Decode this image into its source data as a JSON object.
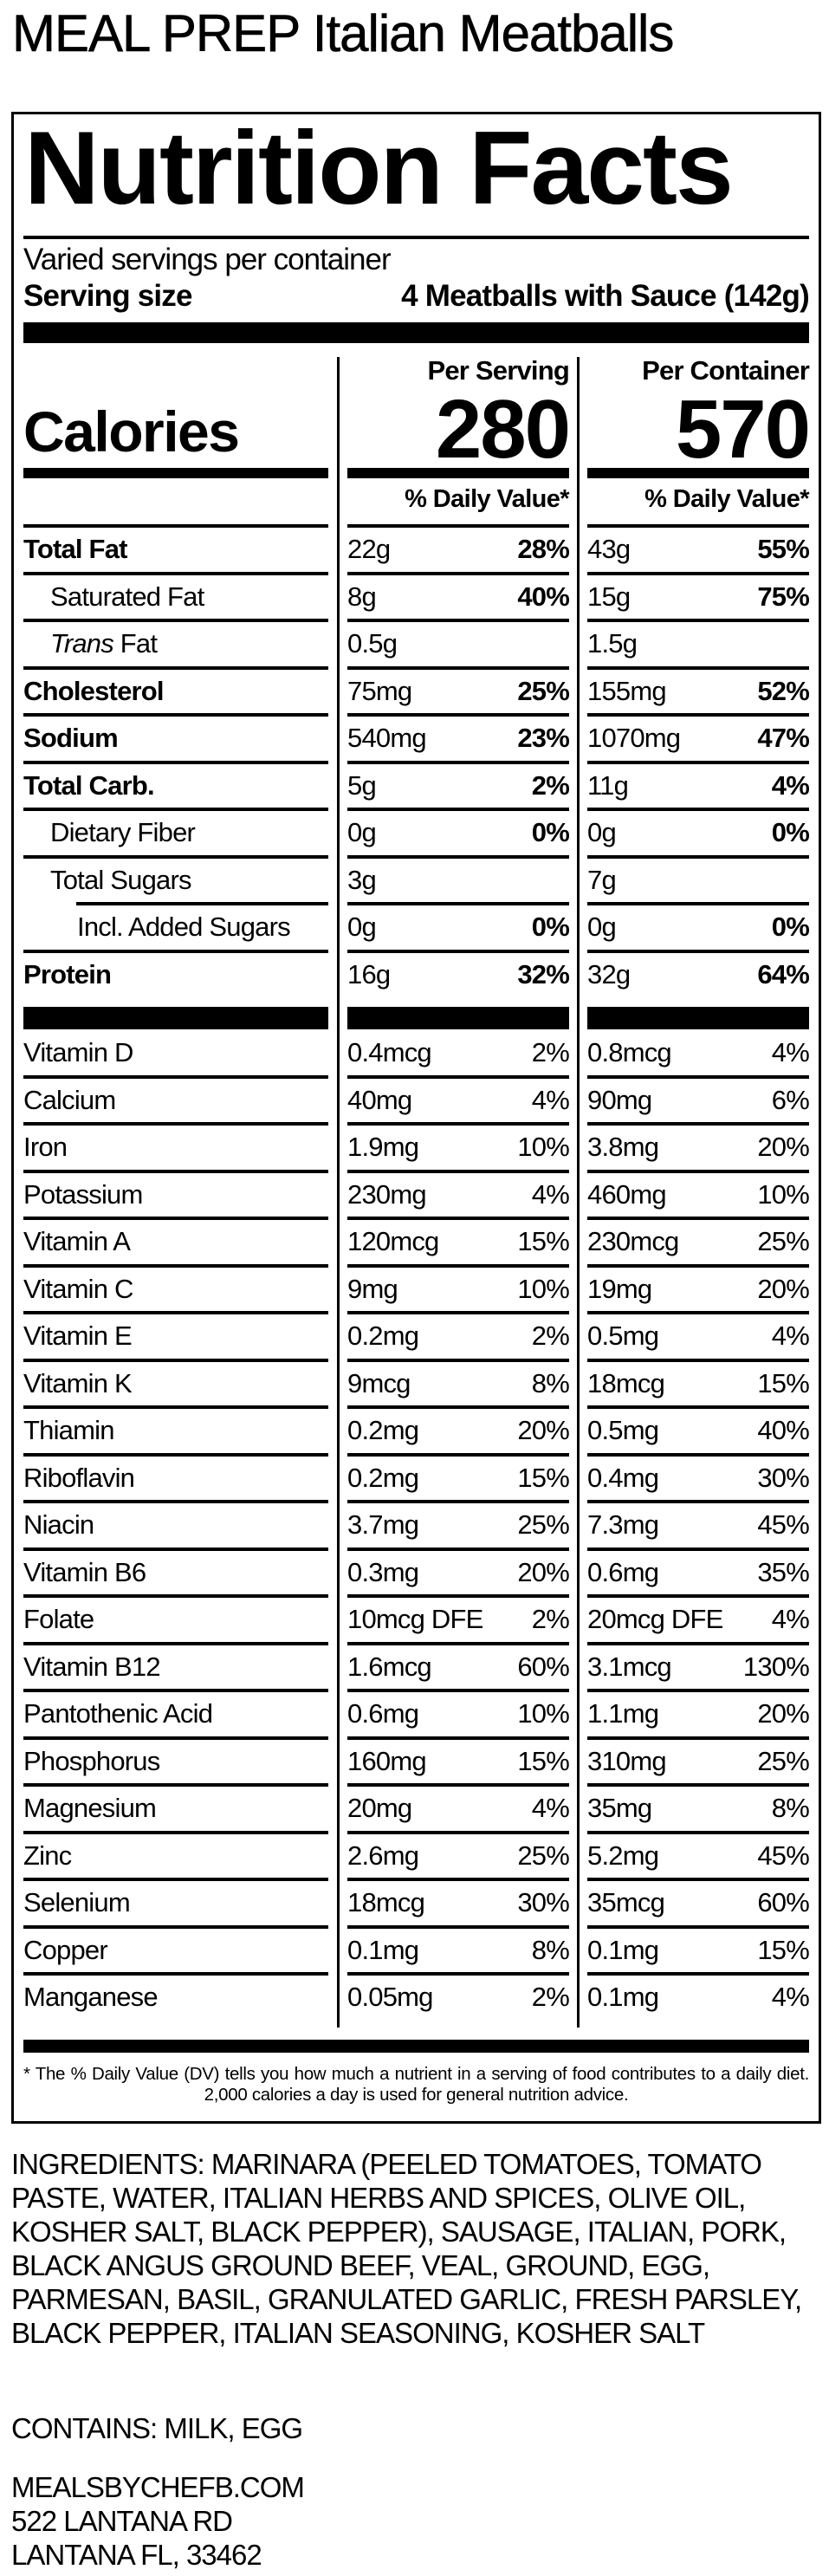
{
  "product_title": "MEAL PREP Italian Meatballs",
  "label": {
    "heading": "Nutrition Facts",
    "servings_per_container": "Varied servings per container",
    "serving_size_label": "Serving size",
    "serving_size_value": "4 Meatballs with Sauce (142g)",
    "calories_label": "Calories",
    "per_serving_header": "Per Serving",
    "per_container_header": "Per Container",
    "calories_per_serving": "280",
    "calories_per_container": "570",
    "daily_value_header": "% Daily Value*",
    "nutrients": [
      {
        "name": "Total Fat",
        "bold": true,
        "indent": 0,
        "s_amt": "22g",
        "s_pct": "28%",
        "c_amt": "43g",
        "c_pct": "55%"
      },
      {
        "name": "Saturated Fat",
        "bold": false,
        "indent": 1,
        "s_amt": "8g",
        "s_pct": "40%",
        "c_amt": "15g",
        "c_pct": "75%"
      },
      {
        "name": "Fat",
        "italic_prefix": "Trans",
        "bold": false,
        "indent": 1,
        "s_amt": "0.5g",
        "s_pct": "",
        "c_amt": "1.5g",
        "c_pct": ""
      },
      {
        "name": "Cholesterol",
        "bold": true,
        "indent": 0,
        "s_amt": "75mg",
        "s_pct": "25%",
        "c_amt": "155mg",
        "c_pct": "52%"
      },
      {
        "name": "Sodium",
        "bold": true,
        "indent": 0,
        "s_amt": "540mg",
        "s_pct": "23%",
        "c_amt": "1070mg",
        "c_pct": "47%"
      },
      {
        "name": "Total Carb.",
        "bold": true,
        "indent": 0,
        "s_amt": "5g",
        "s_pct": "2%",
        "c_amt": "11g",
        "c_pct": "4%"
      },
      {
        "name": "Dietary Fiber",
        "bold": false,
        "indent": 1,
        "s_amt": "0g",
        "s_pct": "0%",
        "c_amt": "0g",
        "c_pct": "0%"
      },
      {
        "name": "Total Sugars",
        "bold": false,
        "indent": 1,
        "s_amt": "3g",
        "s_pct": "",
        "c_amt": "7g",
        "c_pct": ""
      },
      {
        "name": "Incl. Added Sugars",
        "bold": false,
        "indent": 2,
        "s_amt": "0g",
        "s_pct": "0%",
        "c_amt": "0g",
        "c_pct": "0%"
      },
      {
        "name": "Protein",
        "bold": true,
        "indent": 0,
        "s_amt": "16g",
        "s_pct": "32%",
        "c_amt": "32g",
        "c_pct": "64%"
      }
    ],
    "micronutrients": [
      {
        "name": "Vitamin D",
        "s_amt": "0.4mcg",
        "s_pct": "2%",
        "c_amt": "0.8mcg",
        "c_pct": "4%"
      },
      {
        "name": "Calcium",
        "s_amt": "40mg",
        "s_pct": "4%",
        "c_amt": "90mg",
        "c_pct": "6%"
      },
      {
        "name": "Iron",
        "s_amt": "1.9mg",
        "s_pct": "10%",
        "c_amt": "3.8mg",
        "c_pct": "20%"
      },
      {
        "name": "Potassium",
        "s_amt": "230mg",
        "s_pct": "4%",
        "c_amt": "460mg",
        "c_pct": "10%"
      },
      {
        "name": "Vitamin A",
        "s_amt": "120mcg",
        "s_pct": "15%",
        "c_amt": "230mcg",
        "c_pct": "25%"
      },
      {
        "name": "Vitamin C",
        "s_amt": "9mg",
        "s_pct": "10%",
        "c_amt": "19mg",
        "c_pct": "20%"
      },
      {
        "name": "Vitamin E",
        "s_amt": "0.2mg",
        "s_pct": "2%",
        "c_amt": "0.5mg",
        "c_pct": "4%"
      },
      {
        "name": "Vitamin K",
        "s_amt": "9mcg",
        "s_pct": "8%",
        "c_amt": "18mcg",
        "c_pct": "15%"
      },
      {
        "name": "Thiamin",
        "s_amt": "0.2mg",
        "s_pct": "20%",
        "c_amt": "0.5mg",
        "c_pct": "40%"
      },
      {
        "name": "Riboflavin",
        "s_amt": "0.2mg",
        "s_pct": "15%",
        "c_amt": "0.4mg",
        "c_pct": "30%"
      },
      {
        "name": "Niacin",
        "s_amt": "3.7mg",
        "s_pct": "25%",
        "c_amt": "7.3mg",
        "c_pct": "45%"
      },
      {
        "name": "Vitamin B6",
        "s_amt": "0.3mg",
        "s_pct": "20%",
        "c_amt": "0.6mg",
        "c_pct": "35%"
      },
      {
        "name": "Folate",
        "s_amt": "10mcg DFE",
        "s_pct": "2%",
        "c_amt": "20mcg DFE",
        "c_pct": "4%"
      },
      {
        "name": "Vitamin B12",
        "s_amt": "1.6mcg",
        "s_pct": "60%",
        "c_amt": "3.1mcg",
        "c_pct": "130%"
      },
      {
        "name": "Pantothenic Acid",
        "s_amt": "0.6mg",
        "s_pct": "10%",
        "c_amt": "1.1mg",
        "c_pct": "20%"
      },
      {
        "name": "Phosphorus",
        "s_amt": "160mg",
        "s_pct": "15%",
        "c_amt": "310mg",
        "c_pct": "25%"
      },
      {
        "name": "Magnesium",
        "s_amt": "20mg",
        "s_pct": "4%",
        "c_amt": "35mg",
        "c_pct": "8%"
      },
      {
        "name": "Zinc",
        "s_amt": "2.6mg",
        "s_pct": "25%",
        "c_amt": "5.2mg",
        "c_pct": "45%"
      },
      {
        "name": "Selenium",
        "s_amt": "18mcg",
        "s_pct": "30%",
        "c_amt": "35mcg",
        "c_pct": "60%"
      },
      {
        "name": "Copper",
        "s_amt": "0.1mg",
        "s_pct": "8%",
        "c_amt": "0.1mg",
        "c_pct": "15%"
      },
      {
        "name": "Manganese",
        "s_amt": "0.05mg",
        "s_pct": "2%",
        "c_amt": "0.1mg",
        "c_pct": "4%"
      }
    ],
    "footnote": "* The % Daily Value (DV) tells you how much a nutrient in a serving of food contributes to a daily diet. 2,000 calories a day is used for general nutrition advice."
  },
  "ingredients": "INGREDIENTS: MARINARA (PEELED TOMATOES, TOMATO PASTE, WATER, ITALIAN HERBS AND SPICES, OLIVE OIL, KOSHER SALT, BLACK PEPPER), SAUSAGE, ITALIAN, PORK, BLACK ANGUS GROUND BEEF, VEAL, GROUND, EGG, PARMESAN, BASIL, GRANULATED GARLIC, FRESH PARSLEY, BLACK PEPPER, ITALIAN SEASONING, KOSHER SALT",
  "contains": "CONTAINS: MILK, EGG",
  "address": {
    "website": "MEALSBYCHEFB.COM",
    "street": "522 LANTANA RD",
    "city": "LANTANA FL, 33462"
  }
}
